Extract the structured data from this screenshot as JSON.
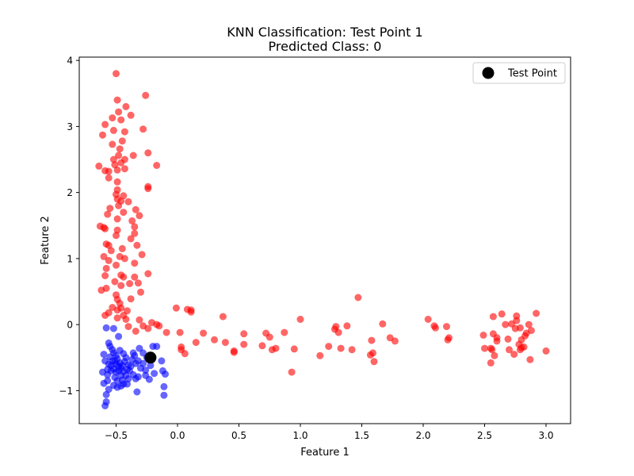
{
  "chart_data": {
    "type": "scatter",
    "title": "KNN Classification: Test Point 1",
    "subtitle": "Predicted Class: 0",
    "xlabel": "Feature 1",
    "ylabel": "Feature 2",
    "xlim": [
      -0.8,
      3.2
    ],
    "ylim": [
      -1.5,
      4.05
    ],
    "xticks": [
      -0.5,
      0.0,
      0.5,
      1.0,
      1.5,
      2.0,
      2.5,
      3.0
    ],
    "yticks": [
      -1,
      0,
      1,
      2,
      3,
      4
    ],
    "grid": false,
    "legend": {
      "position": "top-right",
      "entries": [
        "Test Point"
      ]
    },
    "colors": {
      "class_red": "#ff0000",
      "class_blue": "#0000ff",
      "test_point": "#000000"
    },
    "series": [
      {
        "color": "#ff0000",
        "points": [
          [
            -0.5,
            3.8
          ],
          [
            -0.49,
            3.4
          ],
          [
            -0.26,
            3.47
          ],
          [
            -0.42,
            3.3
          ],
          [
            -0.48,
            3.22
          ],
          [
            -0.38,
            3.17
          ],
          [
            -0.53,
            3.13
          ],
          [
            -0.46,
            3.1
          ],
          [
            -0.59,
            3.03
          ],
          [
            -0.28,
            2.96
          ],
          [
            -0.52,
            2.94
          ],
          [
            -0.43,
            2.92
          ],
          [
            -0.61,
            2.87
          ],
          [
            -0.45,
            2.78
          ],
          [
            -0.53,
            2.73
          ],
          [
            -0.47,
            2.66
          ],
          [
            -0.48,
            2.56
          ],
          [
            -0.36,
            2.56
          ],
          [
            -0.24,
            2.6
          ],
          [
            -0.52,
            2.5
          ],
          [
            -0.43,
            2.5
          ],
          [
            -0.46,
            2.45
          ],
          [
            -0.51,
            2.42
          ],
          [
            -0.17,
            2.41
          ],
          [
            -0.64,
            2.4
          ],
          [
            -0.59,
            2.33
          ],
          [
            -0.56,
            2.32
          ],
          [
            -0.49,
            2.34
          ],
          [
            -0.43,
            2.36
          ],
          [
            -0.56,
            2.22
          ],
          [
            -0.49,
            2.16
          ],
          [
            -0.24,
            2.09
          ],
          [
            -0.24,
            2.06
          ],
          [
            -0.49,
            2.04
          ],
          [
            -0.5,
            1.97
          ],
          [
            -0.44,
            1.95
          ],
          [
            -0.49,
            1.9
          ],
          [
            -0.46,
            1.87
          ],
          [
            -0.4,
            1.86
          ],
          [
            -0.48,
            1.8
          ],
          [
            -0.55,
            1.76
          ],
          [
            -0.34,
            1.74
          ],
          [
            -0.44,
            1.7
          ],
          [
            -0.57,
            1.67
          ],
          [
            -0.31,
            1.65
          ],
          [
            -0.49,
            1.6
          ],
          [
            -0.37,
            1.57
          ],
          [
            -0.63,
            1.49
          ],
          [
            -0.6,
            1.47
          ],
          [
            -0.35,
            1.48
          ],
          [
            -0.49,
            1.43
          ],
          [
            -0.59,
            1.45
          ],
          [
            -0.35,
            1.38
          ],
          [
            -0.5,
            1.35
          ],
          [
            -0.38,
            1.3
          ],
          [
            -0.58,
            1.22
          ],
          [
            -0.56,
            1.2
          ],
          [
            -0.33,
            1.2
          ],
          [
            -0.45,
            1.15
          ],
          [
            -0.54,
            1.12
          ],
          [
            -0.29,
            1.06
          ],
          [
            -0.6,
            1.03
          ],
          [
            -0.47,
            1.03
          ],
          [
            -0.56,
            0.97
          ],
          [
            -0.43,
            1.0
          ],
          [
            -0.35,
            0.93
          ],
          [
            -0.5,
            0.9
          ],
          [
            -0.58,
            0.85
          ],
          [
            -0.46,
            0.75
          ],
          [
            -0.44,
            0.72
          ],
          [
            -0.35,
            0.72
          ],
          [
            -0.24,
            0.77
          ],
          [
            -0.59,
            0.74
          ],
          [
            -0.51,
            0.65
          ],
          [
            -0.39,
            0.62
          ],
          [
            -0.32,
            0.63
          ],
          [
            -0.46,
            0.59
          ],
          [
            -0.58,
            0.55
          ],
          [
            -0.62,
            0.52
          ],
          [
            -0.3,
            0.49
          ],
          [
            -0.5,
            0.45
          ],
          [
            -0.38,
            0.39
          ],
          [
            -0.49,
            0.38
          ],
          [
            -0.47,
            0.32
          ],
          [
            -0.53,
            0.26
          ],
          [
            -0.49,
            0.22
          ],
          [
            -0.46,
            0.25
          ],
          [
            -0.41,
            0.21
          ],
          [
            -0.56,
            0.18
          ],
          [
            -0.59,
            0.14
          ],
          [
            -0.44,
            0.14
          ],
          [
            -0.42,
            0.08
          ],
          [
            -0.31,
            0.07
          ],
          [
            -0.49,
            0.1
          ],
          [
            -0.4,
            -0.03
          ],
          [
            -0.28,
            -0.02
          ],
          [
            -0.21,
            0.03
          ],
          [
            -0.17,
            0.0
          ],
          [
            -0.15,
            -0.02
          ],
          [
            -0.24,
            -0.06
          ],
          [
            -0.34,
            -0.1
          ],
          [
            -0.09,
            -0.12
          ],
          [
            -0.01,
            0.25
          ],
          [
            0.08,
            0.23
          ],
          [
            0.11,
            0.19
          ],
          [
            0.11,
            0.22
          ],
          [
            0.15,
            -0.27
          ],
          [
            0.03,
            -0.34
          ],
          [
            0.03,
            -0.38
          ],
          [
            0.06,
            -0.44
          ],
          [
            0.02,
            -0.12
          ],
          [
            0.21,
            -0.13
          ],
          [
            0.3,
            -0.23
          ],
          [
            0.37,
            0.12
          ],
          [
            0.39,
            -0.27
          ],
          [
            0.46,
            -0.4
          ],
          [
            0.46,
            -0.42
          ],
          [
            0.54,
            -0.14
          ],
          [
            0.54,
            -0.3
          ],
          [
            0.69,
            -0.32
          ],
          [
            0.72,
            -0.13
          ],
          [
            0.75,
            -0.19
          ],
          [
            0.77,
            -0.38
          ],
          [
            0.8,
            -0.36
          ],
          [
            0.87,
            -0.12
          ],
          [
            0.93,
            -0.72
          ],
          [
            0.95,
            -0.37
          ],
          [
            1.0,
            0.08
          ],
          [
            1.16,
            -0.47
          ],
          [
            1.23,
            -0.33
          ],
          [
            1.28,
            -0.07
          ],
          [
            1.29,
            -0.03
          ],
          [
            1.31,
            -0.12
          ],
          [
            1.33,
            -0.36
          ],
          [
            1.38,
            -0.02
          ],
          [
            1.42,
            -0.38
          ],
          [
            1.47,
            0.41
          ],
          [
            1.57,
            -0.46
          ],
          [
            1.58,
            -0.24
          ],
          [
            1.59,
            -0.43
          ],
          [
            1.6,
            -0.56
          ],
          [
            1.67,
            0.01
          ],
          [
            1.73,
            -0.2
          ],
          [
            1.77,
            -0.25
          ],
          [
            2.04,
            0.08
          ],
          [
            2.09,
            -0.02
          ],
          [
            2.1,
            -0.05
          ],
          [
            2.19,
            -0.03
          ],
          [
            2.2,
            -0.23
          ],
          [
            2.21,
            -0.2
          ],
          [
            2.49,
            -0.16
          ],
          [
            2.5,
            -0.36
          ],
          [
            2.55,
            -0.36
          ],
          [
            2.55,
            -0.58
          ],
          [
            2.56,
            -0.38
          ],
          [
            2.57,
            -0.14
          ],
          [
            2.57,
            0.12
          ],
          [
            2.58,
            -0.47
          ],
          [
            2.6,
            -0.25
          ],
          [
            2.6,
            -0.2
          ],
          [
            2.64,
            0.16
          ],
          [
            2.67,
            0.0
          ],
          [
            2.69,
            -0.22
          ],
          [
            2.7,
            -0.38
          ],
          [
            2.72,
            0.01
          ],
          [
            2.74,
            -0.45
          ],
          [
            2.75,
            -0.06
          ],
          [
            2.76,
            0.13
          ],
          [
            2.76,
            0.06
          ],
          [
            2.78,
            -0.3
          ],
          [
            2.79,
            -0.38
          ],
          [
            2.79,
            -0.05
          ],
          [
            2.8,
            -0.23
          ],
          [
            2.8,
            -0.35
          ],
          [
            2.82,
            -0.34
          ],
          [
            2.83,
            -0.17
          ],
          [
            2.84,
            -0.13
          ],
          [
            2.86,
            0.0
          ],
          [
            2.87,
            -0.53
          ],
          [
            2.88,
            -0.09
          ],
          [
            2.92,
            0.17
          ],
          [
            3.0,
            -0.4
          ]
        ]
      },
      {
        "color": "#0000ff",
        "points": [
          [
            -0.59,
            -1.23
          ],
          [
            -0.58,
            -1.17
          ],
          [
            -0.58,
            -1.06
          ],
          [
            -0.56,
            -0.98
          ],
          [
            -0.6,
            -0.89
          ],
          [
            -0.57,
            -0.85
          ],
          [
            -0.52,
            -0.92
          ],
          [
            -0.49,
            -0.95
          ],
          [
            -0.46,
            -0.93
          ],
          [
            -0.41,
            -0.9
          ],
          [
            -0.34,
            -0.82
          ],
          [
            -0.32,
            -0.79
          ],
          [
            -0.33,
            -1.02
          ],
          [
            -0.26,
            -0.77
          ],
          [
            -0.23,
            -0.83
          ],
          [
            -0.19,
            -0.74
          ],
          [
            -0.12,
            -0.7
          ],
          [
            -0.1,
            -0.75
          ],
          [
            -0.11,
            -0.94
          ],
          [
            -0.11,
            -1.07
          ],
          [
            -0.13,
            -0.55
          ],
          [
            -0.17,
            -0.33
          ],
          [
            -0.2,
            -0.33
          ],
          [
            -0.25,
            -0.5
          ],
          [
            -0.28,
            -0.43
          ],
          [
            -0.31,
            -0.36
          ],
          [
            -0.35,
            -0.47
          ],
          [
            -0.37,
            -0.53
          ],
          [
            -0.4,
            -0.61
          ],
          [
            -0.41,
            -0.68
          ],
          [
            -0.42,
            -0.77
          ],
          [
            -0.44,
            -0.71
          ],
          [
            -0.46,
            -0.66
          ],
          [
            -0.47,
            -0.58
          ],
          [
            -0.49,
            -0.52
          ],
          [
            -0.5,
            -0.47
          ],
          [
            -0.52,
            -0.43
          ],
          [
            -0.53,
            -0.38
          ],
          [
            -0.55,
            -0.33
          ],
          [
            -0.56,
            -0.28
          ],
          [
            -0.58,
            -0.05
          ],
          [
            -0.52,
            -0.06
          ],
          [
            -0.48,
            -0.18
          ],
          [
            -0.56,
            -0.6
          ],
          [
            -0.61,
            -0.72
          ],
          [
            -0.59,
            -0.55
          ],
          [
            -0.6,
            -0.45
          ],
          [
            -0.54,
            -0.7
          ],
          [
            -0.51,
            -0.8
          ],
          [
            -0.45,
            -0.84
          ],
          [
            -0.48,
            -0.63
          ],
          [
            -0.5,
            -0.72
          ],
          [
            -0.53,
            -0.55
          ],
          [
            -0.55,
            -0.49
          ],
          [
            -0.43,
            -0.56
          ],
          [
            -0.39,
            -0.7
          ],
          [
            -0.36,
            -0.76
          ],
          [
            -0.3,
            -0.66
          ],
          [
            -0.28,
            -0.59
          ],
          [
            -0.22,
            -0.62
          ],
          [
            -0.26,
            -0.69
          ],
          [
            -0.32,
            -0.55
          ],
          [
            -0.44,
            -0.44
          ],
          [
            -0.47,
            -0.39
          ],
          [
            -0.57,
            -0.76
          ],
          [
            -0.52,
            -0.67
          ],
          [
            -0.49,
            -0.85
          ],
          [
            -0.46,
            -0.77
          ],
          [
            -0.4,
            -0.82
          ],
          [
            -0.38,
            -0.63
          ],
          [
            -0.34,
            -0.59
          ],
          [
            -0.45,
            -0.62
          ],
          [
            -0.5,
            -0.6
          ],
          [
            -0.54,
            -0.62
          ],
          [
            -0.57,
            -0.68
          ],
          [
            -0.48,
            -0.7
          ],
          [
            -0.42,
            -0.5
          ],
          [
            -0.36,
            -0.43
          ],
          [
            -0.44,
            -0.9
          ],
          [
            -0.51,
            -0.55
          ]
        ]
      }
    ],
    "test_point": {
      "label": "Test Point",
      "x": -0.22,
      "y": -0.5,
      "color": "#000000"
    }
  }
}
